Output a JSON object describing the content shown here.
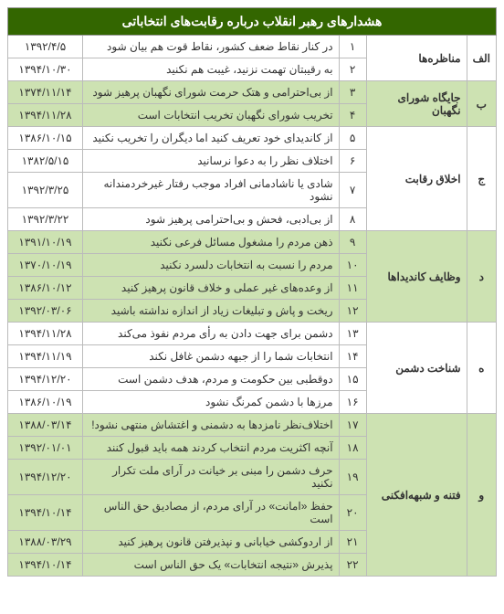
{
  "title": "هشدارهای رهبر انقلاب درباره رقابت‌های انتخاباتی",
  "colors": {
    "header_bg": "#336600",
    "header_text": "#ffffff",
    "shade_bg": "#cde2b2",
    "border": "#bbbbbb"
  },
  "groups": [
    {
      "letter": "الف",
      "category": "مناظره‌ها",
      "shaded": false,
      "rows": [
        {
          "num": "۱",
          "text": "در کنار نقاط ضعف کشور، نقاط قوت هم بیان شود",
          "date": "۱۳۹۲/۴/۵"
        },
        {
          "num": "۲",
          "text": "به رقیبتان تهمت نزنید، غیبت هم نکنید",
          "date": "۱۳۹۴/۱۰/۳۰"
        }
      ]
    },
    {
      "letter": "ب",
      "category": "جایگاه شورای نگهبان",
      "shaded": true,
      "rows": [
        {
          "num": "۳",
          "text": "از بی‌احترامی و هتک حرمت شورای نگهبان پرهیز شود",
          "date": "۱۳۷۴/۱۱/۱۴"
        },
        {
          "num": "۴",
          "text": "تخریب شورای نگهبان تخریب انتخابات است",
          "date": "۱۳۹۴/۱۱/۲۸"
        }
      ]
    },
    {
      "letter": "ج",
      "category": "اخلاق رقابت",
      "shaded": false,
      "rows": [
        {
          "num": "۵",
          "text": "از کاندیدای خود تعریف کنید اما دیگران را تخریب نکنید",
          "date": "۱۳۸۶/۱۰/۱۵"
        },
        {
          "num": "۶",
          "text": "اختلاف نظر را به دعوا نرسانید",
          "date": "۱۳۸۲/۵/۱۵"
        },
        {
          "num": "۷",
          "text": "شادی یا ناشادمانی افراد موجب رفتار غیرخردمندانه نشود",
          "date": "۱۳۹۲/۳/۲۵"
        },
        {
          "num": "۸",
          "text": "از بی‌ادبی، فحش و بی‌احترامی پرهیز شود",
          "date": "۱۳۹۲/۳/۲۲"
        }
      ]
    },
    {
      "letter": "د",
      "category": "وظایف کاندیداها",
      "shaded": true,
      "rows": [
        {
          "num": "۹",
          "text": "ذهن مردم را مشغول مسائل فرعی نکنید",
          "date": "۱۳۹۱/۱۰/۱۹"
        },
        {
          "num": "۱۰",
          "text": "مردم را نسبت به انتخابات دلسرد نکنید",
          "date": "۱۳۷۰/۱۰/۱۹"
        },
        {
          "num": "۱۱",
          "text": "از وعده‌های غیر عملی و خلاف قانون پرهیز کنید",
          "date": "۱۳۸۶/۱۰/۱۲"
        },
        {
          "num": "۱۲",
          "text": "ریخت و پاش و تبلیغات زیاد از اندازه نداشته باشید",
          "date": "۱۳۹۲/۰۳/۰۶"
        }
      ]
    },
    {
      "letter": "ه",
      "category": "شناخت دشمن",
      "shaded": false,
      "rows": [
        {
          "num": "۱۳",
          "text": "دشمن برای جهت دادن به رأی مردم نفوذ می‌کند",
          "date": "۱۳۹۴/۱۱/۲۸"
        },
        {
          "num": "۱۴",
          "text": "انتخابات شما را از جبهه دشمن غافل نکند",
          "date": "۱۳۹۴/۱۱/۱۹"
        },
        {
          "num": "۱۵",
          "text": "دوقطبی بین حکومت و مردم، هدف دشمن است",
          "date": "۱۳۹۴/۱۲/۲۰"
        },
        {
          "num": "۱۶",
          "text": "مرزها با دشمن کمرنگ نشود",
          "date": "۱۳۸۶/۱۰/۱۹"
        }
      ]
    },
    {
      "letter": "و",
      "category": "فتنه و شبهه‌افکنی",
      "shaded": true,
      "rows": [
        {
          "num": "۱۷",
          "text": "اختلاف‌نظر نامزدها به دشمنی و اغتشاش منتهی نشود!",
          "date": "۱۳۸۸/۰۳/۱۴"
        },
        {
          "num": "۱۸",
          "text": "آنچه اکثریت مردم انتخاب کردند همه باید قبول کنند",
          "date": "۱۳۹۲/۰۱/۰۱"
        },
        {
          "num": "۱۹",
          "text": "حرف دشمن را مبنی بر خیانت در آرای ملت تکرار نکنید",
          "date": "۱۳۹۴/۱۲/۲۰"
        },
        {
          "num": "۲۰",
          "text": "حفظ «امانت» در آرای مردم، از مصادیق حق الناس است",
          "date": "۱۳۹۴/۱۰/۱۴"
        },
        {
          "num": "۲۱",
          "text": "از اردوکشی خیابانی و نپذیرفتن قانون پرهیز کنید",
          "date": "۱۳۸۸/۰۳/۲۹"
        },
        {
          "num": "۲۲",
          "text": "پذیرش «نتیجه انتخابات» یک حق الناس است",
          "date": "۱۳۹۴/۱۰/۱۴"
        }
      ]
    }
  ]
}
